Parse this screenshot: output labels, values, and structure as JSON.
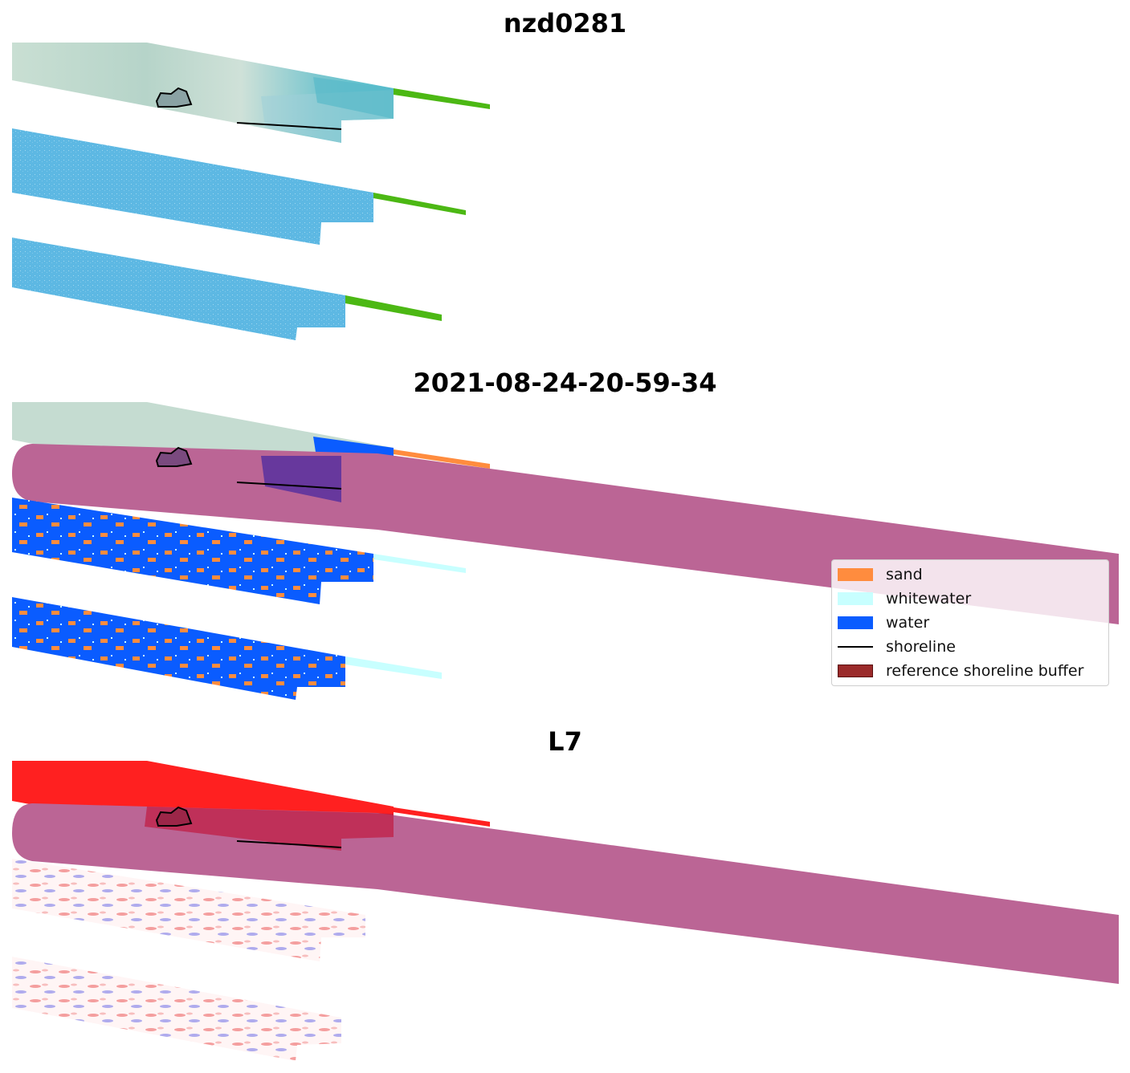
{
  "panels": [
    {
      "title": "nzd0281"
    },
    {
      "title": "2021-08-24-20-59-34"
    },
    {
      "title": "L7"
    }
  ],
  "legend": {
    "items": [
      {
        "label": "sand",
        "color": "#ff8c3e"
      },
      {
        "label": "whitewater",
        "color": "#c8ffff"
      },
      {
        "label": "water",
        "color": "#0a5cff"
      },
      {
        "label": "shoreline",
        "color": "#000000"
      },
      {
        "label": "reference shoreline buffer",
        "color": "#9a2a2a"
      }
    ]
  },
  "colors": {
    "buffer": "#bb6595",
    "vegetation_green": "#4cb814",
    "rgb_light": "#c5ddd0",
    "rgb_teal": "#5fc0d0",
    "nir_blue": "#58b8e6",
    "ndwi_red": "#ff2020"
  }
}
